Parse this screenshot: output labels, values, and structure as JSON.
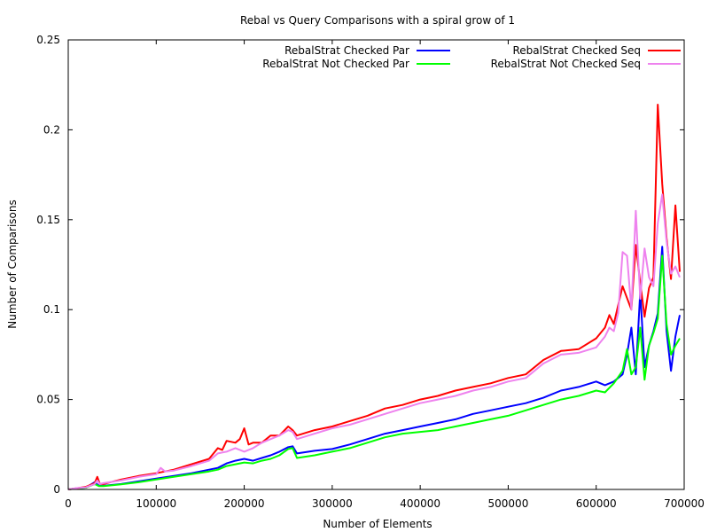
{
  "chart_data": {
    "type": "line",
    "title": "Rebal vs Query Comparisons with a spiral grow of 1",
    "xlabel": "Number of Elements",
    "ylabel": "Number of Comparisons",
    "xlim": [
      0,
      700000
    ],
    "ylim": [
      0,
      0.25
    ],
    "xticks": [
      0,
      100000,
      200000,
      300000,
      400000,
      500000,
      600000,
      700000
    ],
    "xtick_labels": [
      "0",
      "100000",
      "200000",
      "300000",
      "400000",
      "500000",
      "600000",
      "700000"
    ],
    "yticks": [
      0,
      0.05,
      0.1,
      0.15,
      0.2,
      0.25
    ],
    "ytick_labels": [
      "0",
      "0.05",
      "0.1",
      "0.15",
      "0.2",
      "0.25"
    ],
    "grid": false,
    "legend_placement": "top",
    "series": [
      {
        "name": "RebalStrat Checked Par",
        "color": "#0000ff",
        "x": [
          0,
          10000,
          20000,
          30000,
          35000,
          40000,
          60000,
          80000,
          100000,
          120000,
          140000,
          160000,
          170000,
          180000,
          190000,
          200000,
          210000,
          220000,
          230000,
          240000,
          250000,
          255000,
          260000,
          280000,
          300000,
          320000,
          340000,
          360000,
          380000,
          400000,
          420000,
          440000,
          460000,
          480000,
          500000,
          520000,
          540000,
          560000,
          580000,
          600000,
          610000,
          620000,
          630000,
          635000,
          640000,
          645000,
          650000,
          655000,
          660000,
          665000,
          670000,
          675000,
          680000,
          685000,
          690000,
          695000
        ],
        "y": [
          0,
          0.0007,
          0.001,
          0.004,
          0.002,
          0.002,
          0.003,
          0.0045,
          0.006,
          0.0075,
          0.009,
          0.011,
          0.012,
          0.0145,
          0.016,
          0.017,
          0.016,
          0.0175,
          0.019,
          0.021,
          0.0235,
          0.024,
          0.02,
          0.0215,
          0.0225,
          0.025,
          0.028,
          0.031,
          0.033,
          0.035,
          0.037,
          0.039,
          0.042,
          0.044,
          0.046,
          0.048,
          0.051,
          0.055,
          0.057,
          0.06,
          0.058,
          0.06,
          0.064,
          0.075,
          0.09,
          0.064,
          0.11,
          0.068,
          0.08,
          0.088,
          0.098,
          0.135,
          0.088,
          0.066,
          0.085,
          0.097
        ]
      },
      {
        "name": "RebalStrat Not Checked Par",
        "color": "#00ff00",
        "x": [
          0,
          10000,
          20000,
          30000,
          35000,
          40000,
          60000,
          80000,
          100000,
          120000,
          140000,
          160000,
          170000,
          180000,
          190000,
          200000,
          210000,
          220000,
          230000,
          240000,
          250000,
          255000,
          260000,
          280000,
          300000,
          320000,
          340000,
          360000,
          380000,
          400000,
          420000,
          440000,
          460000,
          480000,
          500000,
          520000,
          540000,
          560000,
          580000,
          600000,
          610000,
          620000,
          630000,
          635000,
          640000,
          645000,
          650000,
          655000,
          660000,
          665000,
          670000,
          675000,
          680000,
          685000,
          690000,
          695000
        ],
        "y": [
          0,
          0.0006,
          0.001,
          0.003,
          0.0018,
          0.0018,
          0.0028,
          0.004,
          0.0055,
          0.007,
          0.0085,
          0.01,
          0.011,
          0.013,
          0.014,
          0.015,
          0.0145,
          0.016,
          0.017,
          0.019,
          0.0225,
          0.023,
          0.0175,
          0.019,
          0.021,
          0.023,
          0.026,
          0.029,
          0.031,
          0.032,
          0.033,
          0.035,
          0.037,
          0.039,
          0.041,
          0.044,
          0.047,
          0.05,
          0.052,
          0.055,
          0.054,
          0.059,
          0.066,
          0.078,
          0.064,
          0.068,
          0.09,
          0.061,
          0.08,
          0.087,
          0.095,
          0.13,
          0.092,
          0.075,
          0.08,
          0.084
        ]
      },
      {
        "name": "RebalStrat Checked Seq",
        "color": "#ff0000",
        "x": [
          0,
          10000,
          20000,
          30000,
          33000,
          36000,
          40000,
          60000,
          80000,
          100000,
          120000,
          140000,
          160000,
          170000,
          175000,
          180000,
          190000,
          195000,
          200000,
          205000,
          210000,
          220000,
          230000,
          240000,
          250000,
          255000,
          260000,
          280000,
          300000,
          320000,
          340000,
          360000,
          380000,
          400000,
          420000,
          440000,
          460000,
          480000,
          500000,
          520000,
          540000,
          560000,
          580000,
          600000,
          610000,
          615000,
          620000,
          630000,
          640000,
          645000,
          650000,
          655000,
          660000,
          665000,
          670000,
          675000,
          680000,
          685000,
          690000,
          695000
        ],
        "y": [
          0,
          0.0007,
          0.0015,
          0.0035,
          0.007,
          0.003,
          0.003,
          0.0055,
          0.0075,
          0.009,
          0.011,
          0.014,
          0.017,
          0.023,
          0.022,
          0.027,
          0.026,
          0.028,
          0.034,
          0.025,
          0.026,
          0.026,
          0.03,
          0.03,
          0.035,
          0.033,
          0.03,
          0.033,
          0.035,
          0.038,
          0.041,
          0.045,
          0.047,
          0.05,
          0.052,
          0.055,
          0.057,
          0.059,
          0.062,
          0.064,
          0.072,
          0.077,
          0.078,
          0.084,
          0.09,
          0.097,
          0.092,
          0.113,
          0.1,
          0.136,
          0.115,
          0.096,
          0.112,
          0.118,
          0.214,
          0.17,
          0.14,
          0.117,
          0.158,
          0.121
        ]
      },
      {
        "name": "RebalStrat Not Checked Seq",
        "color": "#ee82ee",
        "x": [
          0,
          10000,
          20000,
          30000,
          33000,
          36000,
          40000,
          60000,
          80000,
          100000,
          105000,
          110000,
          120000,
          140000,
          160000,
          170000,
          180000,
          190000,
          200000,
          210000,
          220000,
          230000,
          240000,
          250000,
          255000,
          260000,
          280000,
          300000,
          320000,
          340000,
          360000,
          380000,
          400000,
          420000,
          440000,
          460000,
          480000,
          500000,
          520000,
          540000,
          560000,
          580000,
          600000,
          610000,
          615000,
          620000,
          625000,
          630000,
          635000,
          640000,
          645000,
          650000,
          655000,
          660000,
          665000,
          670000,
          675000,
          680000,
          685000,
          690000,
          695000
        ],
        "y": [
          0,
          0.0008,
          0.0012,
          0.003,
          0.005,
          0.003,
          0.0035,
          0.005,
          0.007,
          0.0085,
          0.012,
          0.01,
          0.0105,
          0.013,
          0.016,
          0.02,
          0.021,
          0.023,
          0.021,
          0.023,
          0.026,
          0.028,
          0.03,
          0.033,
          0.032,
          0.028,
          0.031,
          0.034,
          0.036,
          0.039,
          0.042,
          0.045,
          0.048,
          0.05,
          0.052,
          0.055,
          0.057,
          0.06,
          0.062,
          0.07,
          0.075,
          0.076,
          0.079,
          0.085,
          0.09,
          0.088,
          0.098,
          0.132,
          0.13,
          0.1,
          0.155,
          0.106,
          0.134,
          0.118,
          0.113,
          0.148,
          0.164,
          0.138,
          0.12,
          0.124,
          0.118
        ]
      }
    ]
  }
}
